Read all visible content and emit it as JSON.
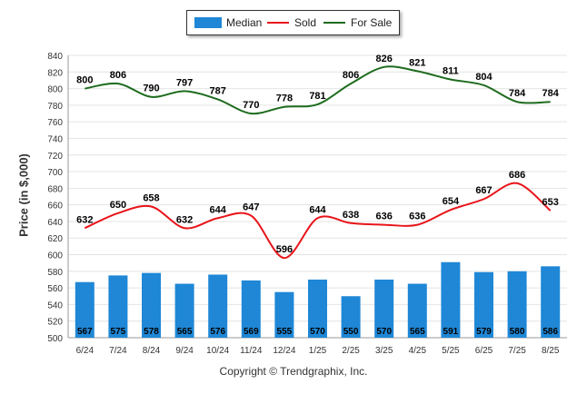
{
  "chart_data": {
    "type": "bar",
    "categories": [
      "6/24",
      "7/24",
      "8/24",
      "9/24",
      "10/24",
      "11/24",
      "12/24",
      "1/25",
      "2/25",
      "3/25",
      "4/25",
      "5/25",
      "6/25",
      "7/25",
      "8/25"
    ],
    "series": [
      {
        "name": "Median",
        "kind": "bar",
        "color": "#1f87d6",
        "values": [
          567,
          575,
          578,
          565,
          576,
          569,
          555,
          570,
          550,
          570,
          565,
          591,
          579,
          580,
          586
        ]
      },
      {
        "name": "Sold",
        "kind": "line",
        "color": "#e8141a",
        "values": [
          632,
          650,
          658,
          632,
          644,
          647,
          596,
          644,
          638,
          636,
          636,
          654,
          667,
          686,
          653
        ]
      },
      {
        "name": "For Sale",
        "kind": "line",
        "color": "#1e6b1e",
        "values": [
          800,
          806,
          790,
          797,
          787,
          770,
          778,
          781,
          806,
          826,
          821,
          811,
          804,
          784,
          784
        ]
      }
    ],
    "ylabel": "Price (in $,000)",
    "ylim": [
      500,
      840
    ],
    "yticks": [
      500,
      520,
      540,
      560,
      580,
      600,
      620,
      640,
      660,
      680,
      700,
      720,
      740,
      760,
      780,
      800,
      820,
      840
    ],
    "grid": true,
    "legend_position": "top-center"
  },
  "legend": {
    "median_label": "Median",
    "sold_label": "Sold",
    "for_sale_label": "For Sale"
  },
  "footer": {
    "copyright": "Copyright © Trendgraphix, Inc."
  }
}
